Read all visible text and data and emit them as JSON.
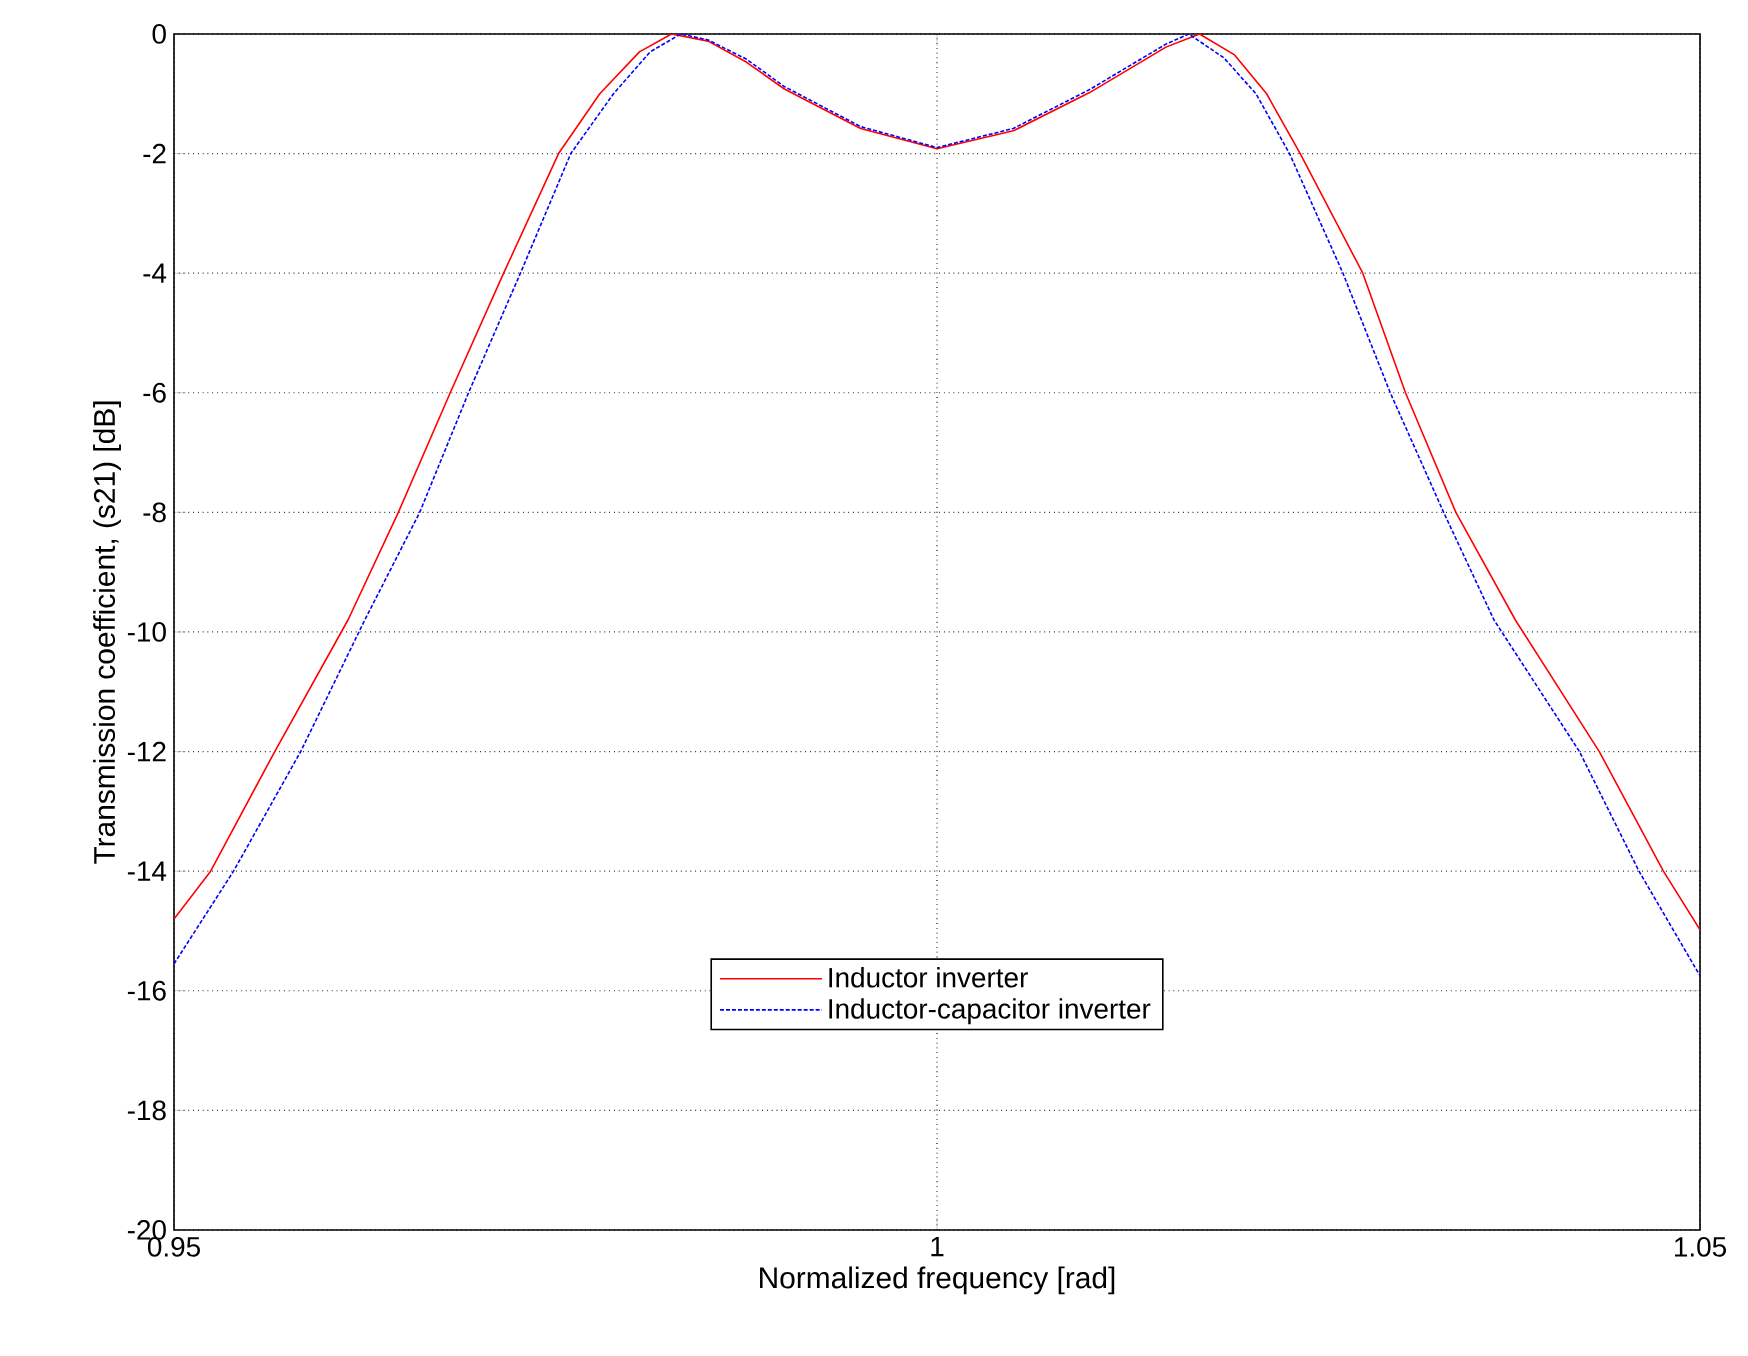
{
  "chart_data": {
    "type": "line",
    "xlabel": "Normalized frequency [rad]",
    "ylabel": "Transmission coefficient, (s21) [dB]",
    "xlim": [
      0.95,
      1.05
    ],
    "ylim": [
      -20,
      0
    ],
    "xticks": [
      0.95,
      1,
      1.05
    ],
    "yticks": [
      -20,
      -18,
      -16,
      -14,
      -12,
      -10,
      -8,
      -6,
      -4,
      -2,
      0
    ],
    "grid": true,
    "legend": "bottom",
    "series": [
      {
        "name": "Inductor inverter",
        "color": "#ff0000",
        "line_style": "solid",
        "x": [
          0.95,
          0.9524,
          0.9566,
          0.9614,
          0.9647,
          0.9681,
          0.9716,
          0.9752,
          0.9779,
          0.9805,
          0.9826,
          0.985,
          0.9875,
          0.99,
          0.995,
          1.0,
          1.005,
          1.01,
          1.0125,
          1.015,
          1.0172,
          1.0195,
          1.0216,
          1.0238,
          1.0279,
          1.0307,
          1.034,
          1.0379,
          1.0434,
          1.0476,
          1.05
        ],
        "values": [
          -14.8,
          -14,
          -12,
          -9.8,
          -8,
          -6,
          -4,
          -2,
          -1,
          -0.3,
          0,
          -0.12,
          -0.47,
          -0.92,
          -1.58,
          -1.92,
          -1.62,
          -0.98,
          -0.6,
          -0.22,
          0,
          -0.35,
          -1,
          -2,
          -4,
          -6,
          -8,
          -9.8,
          -12,
          -14,
          -14.98
        ]
      },
      {
        "name": "Inductor-capacitor inverter",
        "color": "#0000ff",
        "line_style": "dashed",
        "x": [
          0.95,
          0.9539,
          0.9583,
          0.9625,
          0.9661,
          0.9693,
          0.9727,
          0.976,
          0.9788,
          0.9812,
          0.9832,
          0.985,
          0.9875,
          0.99,
          0.995,
          1.0,
          1.005,
          1.01,
          1.0125,
          1.015,
          1.0165,
          1.0188,
          1.0209,
          1.0231,
          1.0266,
          1.0297,
          1.0332,
          1.0365,
          1.0421,
          1.046,
          1.05
        ],
        "values": [
          -15.55,
          -14,
          -12,
          -9.8,
          -8,
          -6,
          -4,
          -2,
          -1,
          -0.3,
          0,
          -0.1,
          -0.42,
          -0.88,
          -1.55,
          -1.9,
          -1.58,
          -0.93,
          -0.55,
          -0.17,
          0,
          -0.4,
          -1,
          -2,
          -4,
          -6,
          -8,
          -9.8,
          -12,
          -14,
          -15.75
        ]
      }
    ]
  }
}
